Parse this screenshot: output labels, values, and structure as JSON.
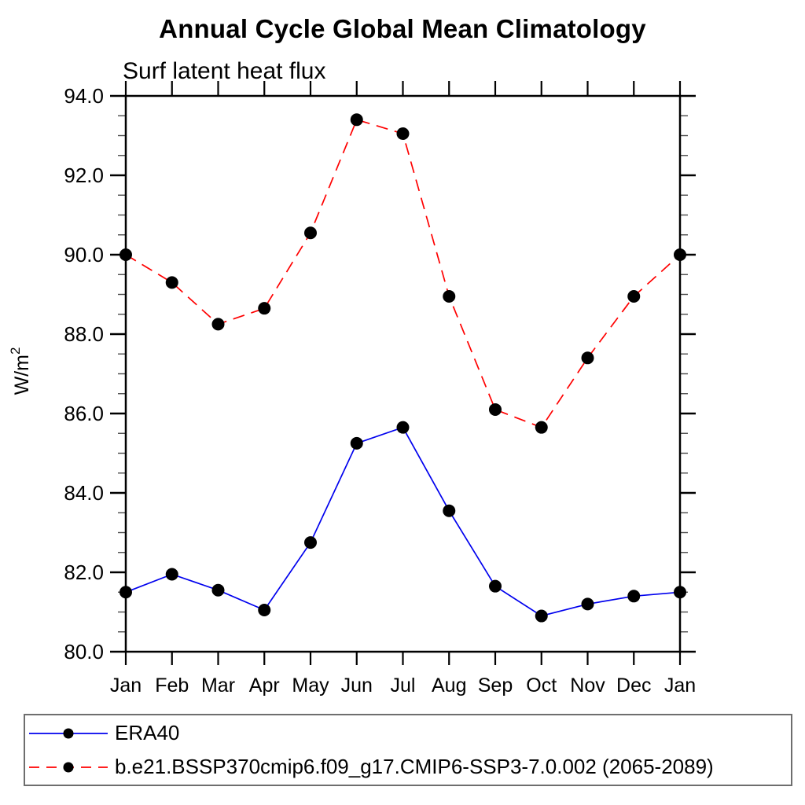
{
  "page": {
    "background": "#ffffff"
  },
  "chart_data": {
    "type": "line",
    "title": "Annual Cycle Global Mean Climatology",
    "subtitle": "Surf latent heat flux",
    "ylabel": "W/m",
    "ylabel_exponent": "2",
    "categories": [
      "Jan",
      "Feb",
      "Mar",
      "Apr",
      "May",
      "Jun",
      "Jul",
      "Aug",
      "Sep",
      "Oct",
      "Nov",
      "Dec",
      "Jan"
    ],
    "ylim": [
      80.0,
      94.0
    ],
    "ytick_major_interval": 2.0,
    "ytick_minor_interval": 0.5,
    "ytick_labels": [
      "80.0",
      "82.0",
      "84.0",
      "86.0",
      "88.0",
      "90.0",
      "92.0",
      "94.0"
    ],
    "grid": false,
    "legend_position": "bottom",
    "marker": "circle",
    "marker_color": "#000000",
    "axis_color": "#000000",
    "series": [
      {
        "name": "ERA40",
        "color": "#0000ee",
        "line_style": "solid",
        "values": [
          81.5,
          81.95,
          81.55,
          81.05,
          82.75,
          85.25,
          85.65,
          83.55,
          81.65,
          80.9,
          81.2,
          81.4,
          81.5
        ]
      },
      {
        "name": "b.e21.BSSP370cmip6.f09_g17.CMIP6-SSP3-7.0.002 (2065-2089)",
        "color": "#ff0000",
        "line_style": "dashed",
        "values": [
          90.0,
          89.3,
          88.25,
          88.65,
          90.55,
          93.4,
          93.05,
          88.95,
          86.1,
          85.65,
          87.4,
          88.95,
          90.0
        ]
      }
    ]
  }
}
